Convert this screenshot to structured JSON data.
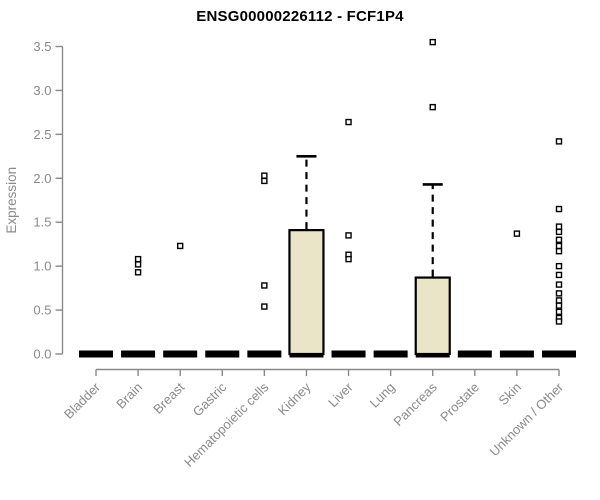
{
  "header": {
    "title": "ENSG00000226112 - FCF1P4"
  },
  "chart_data": {
    "type": "boxplot",
    "title": "ENSG00000226112 - FCF1P4",
    "xlabel": "",
    "ylabel": "Expression",
    "ylim": [
      0.0,
      3.5
    ],
    "yticks": [
      0.0,
      0.5,
      1.0,
      1.5,
      2.0,
      2.5,
      3.0,
      3.5
    ],
    "ytick_labels": [
      "0.0",
      "0.5",
      "1.0",
      "1.5",
      "2.0",
      "2.5",
      "3.0",
      "3.5"
    ],
    "grid": false,
    "legend_position": "none",
    "categories": [
      "Bladder",
      "Brain",
      "Breast",
      "Gastric",
      "Hematopoietic cells",
      "Kidney",
      "Liver",
      "Lung",
      "Pancreas",
      "Prostate",
      "Skin",
      "Unknown / Other"
    ],
    "series": [
      {
        "category": "Bladder",
        "median": 0,
        "q1": 0,
        "q3": 0,
        "whisker_low": 0,
        "whisker_high": 0,
        "outliers": []
      },
      {
        "category": "Brain",
        "median": 0,
        "q1": 0,
        "q3": 0,
        "whisker_low": 0,
        "whisker_high": 0,
        "outliers": [
          1.08,
          1.02,
          0.93
        ]
      },
      {
        "category": "Breast",
        "median": 0,
        "q1": 0,
        "q3": 0,
        "whisker_low": 0,
        "whisker_high": 0,
        "outliers": [
          1.23
        ]
      },
      {
        "category": "Gastric",
        "median": 0,
        "q1": 0,
        "q3": 0,
        "whisker_low": 0,
        "whisker_high": 0,
        "outliers": []
      },
      {
        "category": "Hematopoietic cells",
        "median": 0,
        "q1": 0,
        "q3": 0,
        "whisker_low": 0,
        "whisker_high": 0,
        "outliers": [
          2.03,
          1.97,
          0.78,
          0.54
        ]
      },
      {
        "category": "Kidney",
        "median": 0,
        "q1": 0,
        "q3": 1.41,
        "whisker_low": 0,
        "whisker_high": 2.25,
        "outliers": []
      },
      {
        "category": "Liver",
        "median": 0,
        "q1": 0,
        "q3": 0,
        "whisker_low": 0,
        "whisker_high": 0,
        "outliers": [
          2.64,
          1.35,
          1.13,
          1.08
        ]
      },
      {
        "category": "Lung",
        "median": 0,
        "q1": 0,
        "q3": 0,
        "whisker_low": 0,
        "whisker_high": 0,
        "outliers": []
      },
      {
        "category": "Pancreas",
        "median": 0,
        "q1": 0,
        "q3": 0.87,
        "whisker_low": 0,
        "whisker_high": 1.93,
        "outliers": [
          3.55,
          2.81
        ]
      },
      {
        "category": "Prostate",
        "median": 0,
        "q1": 0,
        "q3": 0,
        "whisker_low": 0,
        "whisker_high": 0,
        "outliers": []
      },
      {
        "category": "Skin",
        "median": 0,
        "q1": 0,
        "q3": 0,
        "whisker_low": 0,
        "whisker_high": 0,
        "outliers": [
          1.37
        ]
      },
      {
        "category": "Unknown / Other",
        "median": 0,
        "q1": 0,
        "q3": 0,
        "whisker_low": 0,
        "whisker_high": 0,
        "outliers": [
          2.42,
          1.65,
          1.45,
          1.39,
          1.3,
          1.23,
          1.17,
          1.0,
          0.9,
          0.79,
          0.69,
          0.61,
          0.55,
          0.48,
          0.41,
          0.37
        ]
      }
    ],
    "colors": {
      "box_fill": "#EBE5C7",
      "box_border": "#000000",
      "zero_bar": "#000000",
      "outlier_stroke": "#000000",
      "outlier_fill": "#ffffff",
      "axis": "#898989",
      "tick_label": "#8a8a8a",
      "title": "#000000"
    }
  }
}
